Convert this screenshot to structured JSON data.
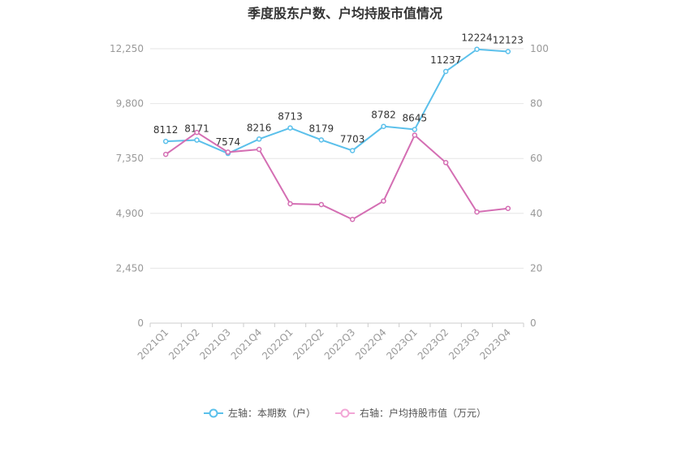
{
  "chart_data": {
    "type": "line",
    "title": "季度股东户数、户均持股市值情况",
    "categories": [
      "2021Q1",
      "2021Q2",
      "2021Q3",
      "2021Q4",
      "2022Q1",
      "2022Q2",
      "2022Q3",
      "2022Q4",
      "2023Q1",
      "2023Q2",
      "2023Q3",
      "2023Q4"
    ],
    "left_axis": {
      "min": 0,
      "max": 12250,
      "ticks": [
        0,
        2450,
        4900,
        7350,
        9800,
        12250
      ],
      "tick_labels": [
        "0",
        "2,450",
        "4,900",
        "7,350",
        "9,800",
        "12,250"
      ]
    },
    "right_axis": {
      "min": 0,
      "max": 100,
      "ticks": [
        0,
        20,
        40,
        60,
        80,
        100
      ],
      "tick_labels": [
        "0",
        "20",
        "40",
        "60",
        "80",
        "100"
      ]
    },
    "series": [
      {
        "name": "左轴：本期数（户）",
        "axis": "left",
        "color": "#5bc0eb",
        "values": [
          8112,
          8171,
          7574,
          8216,
          8713,
          8179,
          7703,
          8782,
          8645,
          11237,
          12224,
          12123
        ],
        "labels": [
          "8112",
          "8171",
          "7574",
          "8216",
          "8713",
          "8179",
          "7703",
          "8782",
          "8645",
          "11237",
          "12224",
          "12123"
        ]
      },
      {
        "name": "右轴：户均持股市值（万元）",
        "axis": "right",
        "color": "#d46eb3",
        "values": [
          61.5,
          69.5,
          62.3,
          63.3,
          43.5,
          43.2,
          37.8,
          44.5,
          68.5,
          58.5,
          40.5,
          41.8
        ]
      }
    ],
    "legend_position": "bottom",
    "grid": true
  }
}
